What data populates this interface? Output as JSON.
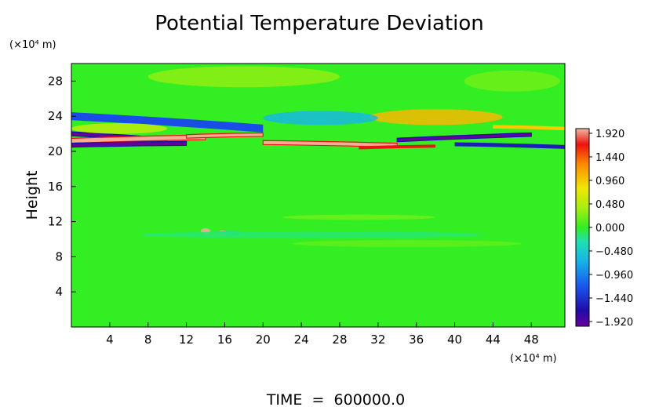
{
  "chart_data": {
    "type": "heatmap",
    "title": "Potential Temperature Deviation",
    "ylabel": "Height",
    "y_unit": "(×10⁴ m)",
    "x_unit": "(×10⁴ m)",
    "footer": "TIME  =  600000.0",
    "xlim": [
      0,
      51.5
    ],
    "ylim": [
      0,
      30
    ],
    "x_ticks": [
      4,
      8,
      12,
      16,
      20,
      24,
      28,
      32,
      36,
      40,
      44,
      48
    ],
    "y_ticks": [
      4,
      8,
      12,
      16,
      20,
      24,
      28
    ],
    "colorbar": {
      "min": -1.92,
      "max": 1.92,
      "labels": [
        "1.920",
        "1.440",
        "0.960",
        "0.480",
        "0.000",
        "−0.480",
        "−0.960",
        "−1.440",
        "−1.920"
      ]
    },
    "colors": {
      "background": "#33ee22",
      "positive_strong": "#ee1111",
      "positive_peak": "#f2b8a0",
      "negative_strong": "#1111aa",
      "negative_peak": "#6a009a"
    },
    "features": [
      {
        "kind": "band",
        "x": [
          0,
          20
        ],
        "y": [
          24.0,
          22.6
        ],
        "value": -1.2,
        "thick": 0.9
      },
      {
        "kind": "band",
        "x": [
          0,
          10
        ],
        "y": [
          22.0,
          21.3
        ],
        "value": -1.9,
        "thick": 0.45
      },
      {
        "kind": "band",
        "x": [
          0,
          14
        ],
        "y": [
          21.2,
          21.6
        ],
        "value": 1.9,
        "thick": 0.55
      },
      {
        "kind": "band",
        "x": [
          0,
          12
        ],
        "y": [
          20.7,
          20.9
        ],
        "value": -1.9,
        "thick": 0.45
      },
      {
        "kind": "band",
        "x": [
          12,
          20
        ],
        "y": [
          21.7,
          21.9
        ],
        "value": 1.9,
        "thick": 0.4
      },
      {
        "kind": "band",
        "x": [
          20,
          34
        ],
        "y": [
          21.0,
          20.7
        ],
        "value": 1.9,
        "thick": 0.45
      },
      {
        "kind": "band",
        "x": [
          30,
          38
        ],
        "y": [
          20.4,
          20.6
        ],
        "value": 1.6,
        "thick": 0.35
      },
      {
        "kind": "band",
        "x": [
          34,
          48
        ],
        "y": [
          21.3,
          21.9
        ],
        "value": -1.9,
        "thick": 0.4
      },
      {
        "kind": "band",
        "x": [
          40,
          51.5
        ],
        "y": [
          20.8,
          20.5
        ],
        "value": -1.5,
        "thick": 0.45
      },
      {
        "kind": "band",
        "x": [
          44,
          51.5
        ],
        "y": [
          22.8,
          22.6
        ],
        "value": 0.9,
        "thick": 0.4
      },
      {
        "kind": "blob",
        "x": 38,
        "y": 23.9,
        "value": 1.0,
        "rx": 7,
        "ry": 0.9
      },
      {
        "kind": "blob",
        "x": 26,
        "y": 23.8,
        "value": -0.6,
        "rx": 6,
        "ry": 0.8
      },
      {
        "kind": "blob",
        "x": 5,
        "y": 22.6,
        "value": 0.5,
        "rx": 5,
        "ry": 0.6
      },
      {
        "kind": "blob",
        "x": 18,
        "y": 28.5,
        "value": 0.3,
        "rx": 10,
        "ry": 1.2
      },
      {
        "kind": "blob",
        "x": 46,
        "y": 28.0,
        "value": 0.2,
        "rx": 5,
        "ry": 1.2
      },
      {
        "kind": "blob",
        "x": 14,
        "y": 10.9,
        "value": 1.9,
        "rx": 0.5,
        "ry": 0.35
      },
      {
        "kind": "blob",
        "x": 15.8,
        "y": 10.7,
        "value": 1.9,
        "rx": 0.45,
        "ry": 0.3
      },
      {
        "kind": "blob",
        "x": 16.5,
        "y": 10.7,
        "value": -0.4,
        "rx": 1.5,
        "ry": 0.25
      },
      {
        "kind": "blob",
        "x": 30,
        "y": 12.5,
        "value": 0.2,
        "rx": 8,
        "ry": 0.3
      },
      {
        "kind": "blob",
        "x": 25,
        "y": 10.5,
        "value": -0.15,
        "rx": 18,
        "ry": 0.4
      },
      {
        "kind": "blob",
        "x": 35,
        "y": 9.5,
        "value": 0.15,
        "rx": 12,
        "ry": 0.4
      }
    ]
  }
}
